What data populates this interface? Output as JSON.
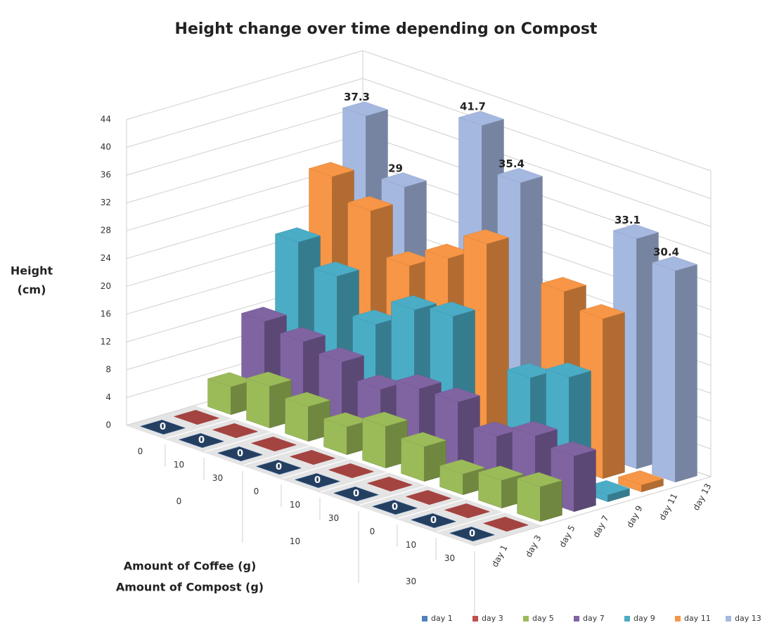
{
  "chart_data": {
    "type": "bar3d",
    "title": "Height change over time depending on Compost",
    "y_label": [
      "Height",
      "(cm)"
    ],
    "x_labels": [
      "Amount of Coffee (g)",
      "Amount of Compost (g)"
    ],
    "categories": [
      "0",
      "10",
      "30",
      "0",
      "10",
      "30",
      "0",
      "10",
      "30"
    ],
    "groups": [
      "0",
      "10",
      "30"
    ],
    "ylim": [
      0,
      44
    ],
    "yticks": [
      0,
      4,
      8,
      12,
      16,
      20,
      24,
      28,
      32,
      36,
      40,
      44
    ],
    "grid": true,
    "legend": "bottom-right",
    "series": [
      {
        "name": "day 1",
        "color": "#4f81bd",
        "top_color": "#243f60",
        "labels": true,
        "values": [
          0,
          0,
          0,
          0,
          0,
          0,
          0,
          0,
          0
        ]
      },
      {
        "name": "day 3",
        "color": "#c0504d",
        "values": [
          0,
          0,
          0,
          0,
          0,
          0,
          0,
          0,
          0
        ]
      },
      {
        "name": "day 5",
        "color": "#9bbb59",
        "values": [
          4,
          6,
          5,
          4,
          6,
          5,
          3,
          4,
          5
        ]
      },
      {
        "name": "day 7",
        "color": "#8064a2",
        "values": [
          12,
          11,
          10,
          8,
          10,
          10,
          7,
          9,
          8
        ]
      },
      {
        "name": "day 9",
        "color": "#4bacc6",
        "values": [
          22,
          19,
          14,
          18,
          19,
          1,
          14,
          16,
          1
        ]
      },
      {
        "name": "day 11",
        "color": "#f79646",
        "values": [
          30,
          27,
          21,
          24,
          28,
          1,
          25,
          23,
          1
        ]
      },
      {
        "name": "day 13",
        "color": "#a5b8e0",
        "labels": true,
        "values": [
          37.3,
          29,
          0,
          41.7,
          35.4,
          0,
          0,
          33.1,
          30.4
        ]
      }
    ]
  }
}
